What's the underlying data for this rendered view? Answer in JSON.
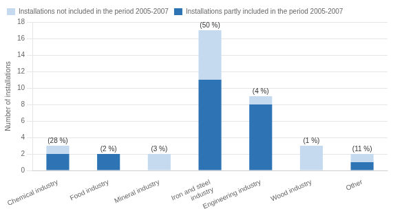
{
  "chart_data": {
    "type": "bar",
    "stacked": true,
    "categories": [
      "Chemical industry",
      "Food industry",
      "Mineral industry",
      "Iron and steel\nindustry",
      "Engineering industry",
      "Wood industry",
      "Other"
    ],
    "series": [
      {
        "name": "Installations partly included in the period 2005-2007",
        "color": "#2E74B5",
        "values": [
          2,
          2,
          0,
          11,
          8,
          0,
          1
        ]
      },
      {
        "name": "Installations not included in the period 2005-2007",
        "color": "#C5D9EF",
        "values": [
          1,
          0,
          2,
          6,
          1,
          3,
          1
        ]
      }
    ],
    "annotations": [
      {
        "category": "Chemical industry",
        "text": "(28 %)"
      },
      {
        "category": "Food industry",
        "text": "(2 %)"
      },
      {
        "category": "Mineral industry",
        "text": "(3 %)"
      },
      {
        "category": "Iron and steel\nindustry",
        "text": "(50 %)"
      },
      {
        "category": "Engineering industry",
        "text": "(4 %)"
      },
      {
        "category": "Wood industry",
        "text": "(1 %)"
      },
      {
        "category": "Other",
        "text": "(11 %)"
      }
    ],
    "ylabel": "Number of installations",
    "ylim": [
      0,
      18
    ],
    "yticks": [
      0,
      2,
      4,
      6,
      8,
      10,
      12,
      14,
      16,
      18
    ],
    "grid": true,
    "legend": "upper left"
  }
}
